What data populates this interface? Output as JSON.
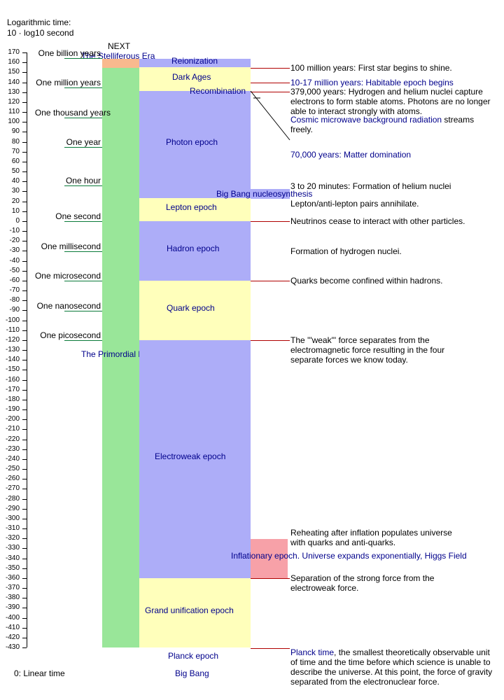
{
  "header": {
    "axis_title_line1": "Logarithmic time:",
    "axis_title_line2": "10 · log10 second"
  },
  "axis": {
    "ticks": [
      "170",
      "160",
      "150",
      "140",
      "130",
      "120",
      "110",
      "100",
      "90",
      "80",
      "70",
      "60",
      "50",
      "40",
      "30",
      "20",
      "10",
      "0",
      "-10",
      "-20",
      "-30",
      "-40",
      "-50",
      "-60",
      "-70",
      "-80",
      "-90",
      "-100",
      "-110",
      "-120",
      "-130",
      "-140",
      "-150",
      "-160",
      "-170",
      "-180",
      "-190",
      "-200",
      "-210",
      "-220",
      "-230",
      "-240",
      "-250",
      "-260",
      "-270",
      "-280",
      "-290",
      "-300",
      "-310",
      "-320",
      "-330",
      "-340",
      "-350",
      "-360",
      "-370",
      "-380",
      "-390",
      "-400",
      "-410",
      "-420",
      "-430"
    ]
  },
  "time_markers": [
    {
      "label": "One billion years",
      "value": 165
    },
    {
      "label": "One million years",
      "value": 135
    },
    {
      "label": "One thousand years",
      "value": 105
    },
    {
      "label": "One year",
      "value": 75
    },
    {
      "label": "One hour",
      "value": 36
    },
    {
      "label": "One second",
      "value": 0
    },
    {
      "label": "One millisecond",
      "value": -30
    },
    {
      "label": "One microsecond",
      "value": -60
    },
    {
      "label": "One nanosecond",
      "value": -90
    },
    {
      "label": "One picosecond",
      "value": -120
    }
  ],
  "eras": {
    "next_label": "NEXT",
    "stelliferous": "The Stelliferous Era",
    "primordial": "The Primordial Era",
    "colors": {
      "stelliferous": "#f9b98e",
      "primordial": "#99e699"
    }
  },
  "epochs": [
    {
      "name": "Reionization",
      "from": 155,
      "to": 164,
      "color": "#adadf8"
    },
    {
      "name": "Dark Ages",
      "from": 131,
      "to": 155,
      "color": "#ffffbb"
    },
    {
      "name": "Recombination",
      "from": 131,
      "to": 131,
      "color": "#ffffbb"
    },
    {
      "name": "Photon epoch",
      "from": 23,
      "to": 131,
      "color": "#adadf8"
    },
    {
      "name": "Lepton epoch",
      "from": 0,
      "to": 23,
      "color": "#ffffbb"
    },
    {
      "name": "Hadron epoch",
      "from": -60,
      "to": 0,
      "color": "#adadf8"
    },
    {
      "name": "Quark epoch",
      "from": -120,
      "to": -60,
      "color": "#ffffbb"
    },
    {
      "name": "Electroweak epoch",
      "from": -360,
      "to": -120,
      "color": "#adadf8"
    },
    {
      "name": "Grand unification epoch",
      "from": -430,
      "to": -360,
      "color": "#ffffbb"
    }
  ],
  "special_labels": {
    "nucleosynthesis": "Big Bang nucleosynthesis",
    "inflation": "Inflationary epoch. Universe expands exponentially,  Higgs Field",
    "planck": "Planck epoch",
    "big_bang": "Big Bang",
    "linear_time": "0: Linear time",
    "inflation_color": "#f7a1a8"
  },
  "events": [
    {
      "text": "100 million years: First star begins to shine.",
      "blue": false
    },
    {
      "text": "10-17 million years: Habitable epoch begins",
      "blue": true
    },
    {
      "text": "379,000 years: Hydrogen and helium nuclei capture electrons to form stable atoms. Photons are no longer able to interact strongly with atoms.",
      "blue": false
    },
    {
      "text": "Cosmic microwave background radiation",
      "blue": true
    },
    {
      "text": " streams freely.",
      "blue": false
    },
    {
      "text": "70,000 years: Matter domination",
      "blue": true
    },
    {
      "text": "3 to 20 minutes: Formation of helium nuclei",
      "blue": false
    },
    {
      "text": "Lepton/anti-lepton pairs annihilate.",
      "blue": false
    },
    {
      "text": "Neutrinos cease to interact with other particles.",
      "blue": false
    },
    {
      "text": "Formation of hydrogen nuclei.",
      "blue": false
    },
    {
      "text": "Quarks become confined within hadrons.",
      "blue": false
    },
    {
      "text": "The '\"weak\"' force separates from the electromagnetic force resulting in the four separate forces we know today.",
      "blue": false
    },
    {
      "text": "Reheating after inflation populates universe with quarks and anti-quarks.",
      "blue": false
    },
    {
      "text": "Separation of the strong force from the electroweak force.",
      "blue": false
    },
    {
      "text": "Planck time",
      "blue": true
    },
    {
      "text": ", the smallest theoretically observable unit of time and the time before which science is unable to describe the universe. At this point, the force of gravity separated from the electronuclear force.",
      "blue": false
    }
  ]
}
